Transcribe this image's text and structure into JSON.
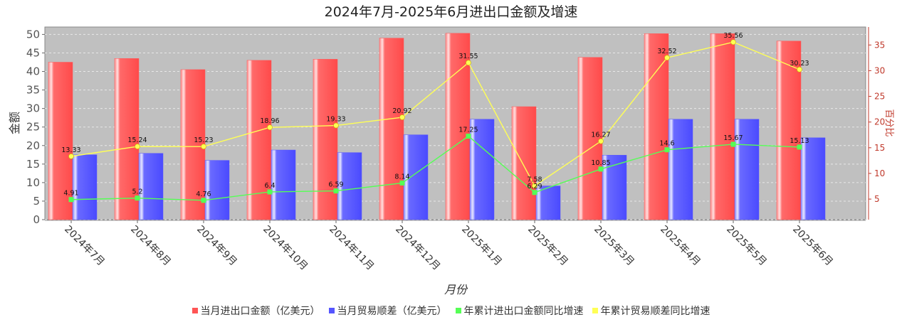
{
  "chart_data": {
    "type": "bar",
    "title": "2024年7月-2025年6月进出口金额及增速",
    "xlabel": "月份",
    "ylabel": "金额",
    "y2label": "百分比",
    "ylim": [
      0,
      52
    ],
    "y2lim": [
      1,
      38.5
    ],
    "y_ticks": [
      0,
      5,
      10,
      15,
      20,
      25,
      30,
      35,
      40,
      45,
      50
    ],
    "y2_ticks": [
      5,
      10,
      15,
      20,
      25,
      30,
      35
    ],
    "grid": true,
    "legend_position": "bottom",
    "categories": [
      "2024年7月",
      "2024年8月",
      "2024年9月",
      "2024年10月",
      "2024年11月",
      "2024年12月",
      "2025年1月",
      "2025年2月",
      "2025年3月",
      "2025年4月",
      "2025年5月",
      "2025年6月"
    ],
    "series": [
      {
        "name": "当月进出口金额（亿美元）",
        "type": "bar",
        "axis": "left",
        "color": "#ff5555",
        "values": [
          42.5,
          43.5,
          40.5,
          43,
          43.3,
          49,
          50.3,
          30.5,
          43.8,
          50.2,
          50.2,
          48.2
        ]
      },
      {
        "name": "当月贸易顺差（亿美元）",
        "type": "bar",
        "axis": "left",
        "color": "#5555ff",
        "values": [
          17.5,
          17.9,
          16,
          18.8,
          18.1,
          22.9,
          27.1,
          9.1,
          17.4,
          27.1,
          27.1,
          22.1
        ]
      },
      {
        "name": "年累计进出口金额同比增速",
        "type": "line",
        "axis": "right",
        "color": "#55ff55",
        "values": [
          4.91,
          5.2,
          4.76,
          6.4,
          6.59,
          8.14,
          17.25,
          6.29,
          10.85,
          14.6,
          15.67,
          15.13
        ],
        "labels": [
          "4.91",
          "5.2",
          "4.76",
          "6.4",
          "6.59",
          "8.14",
          "17.25",
          "6.29",
          "10.85",
          "14.6",
          "15.67",
          "15.13"
        ]
      },
      {
        "name": "年累计贸易顺差同比增速",
        "type": "line",
        "axis": "right",
        "color": "#ffff55",
        "values": [
          13.33,
          15.24,
          15.23,
          18.96,
          19.33,
          20.92,
          31.55,
          7.58,
          16.27,
          32.52,
          35.56,
          30.23
        ],
        "labels": [
          "13.33",
          "15.24",
          "15.23",
          "18.96",
          "19.33",
          "20.92",
          "31.55",
          "7.58",
          "16.27",
          "32.52",
          "35.56",
          "30.23"
        ]
      }
    ]
  }
}
